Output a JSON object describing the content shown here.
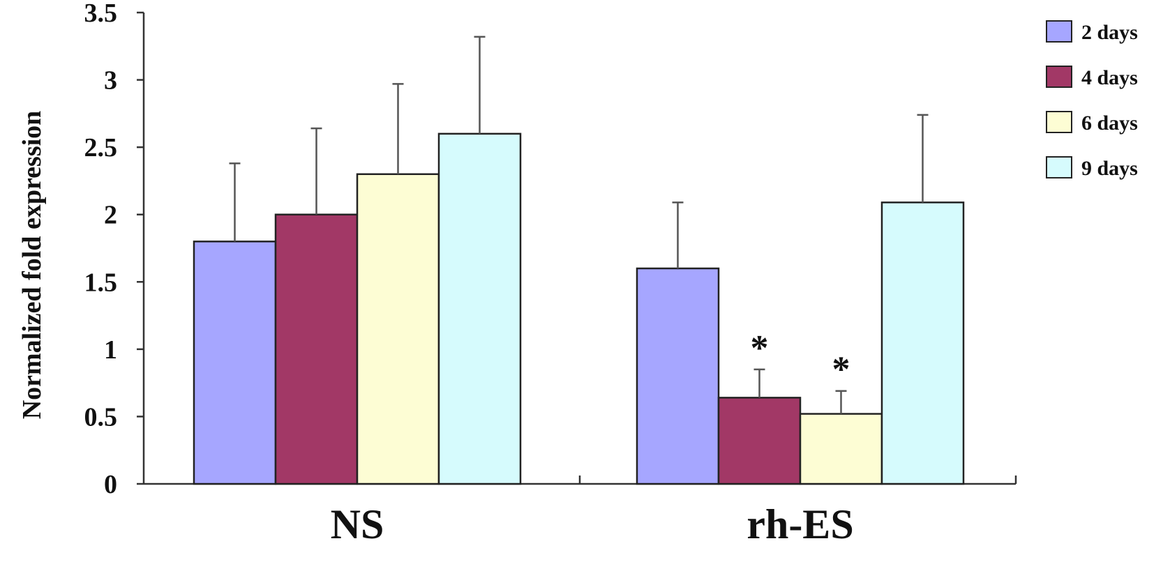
{
  "chart_data": {
    "type": "bar",
    "categories": [
      "NS",
      "rh-ES"
    ],
    "series": [
      {
        "name": "2 days",
        "color": "#a6a6ff",
        "values": [
          1.8,
          1.6
        ],
        "errors": [
          0.58,
          0.49
        ]
      },
      {
        "name": "4 days",
        "color": "#a23866",
        "values": [
          2.0,
          0.64
        ],
        "errors": [
          0.64,
          0.21
        ]
      },
      {
        "name": "6 days",
        "color": "#fdfdd4",
        "values": [
          2.3,
          0.52
        ],
        "errors": [
          0.67,
          0.17
        ]
      },
      {
        "name": "9 days",
        "color": "#d6fbfd",
        "values": [
          2.6,
          2.09
        ],
        "errors": [
          0.72,
          0.65
        ]
      }
    ],
    "significance": [
      {
        "series": "4 days",
        "category": "rh-ES",
        "label": "*"
      },
      {
        "series": "6 days",
        "category": "rh-ES",
        "label": "*"
      }
    ],
    "title": "",
    "xlabel": "",
    "ylabel": "Normalized fold expression",
    "ylim": [
      0,
      3.5
    ],
    "yticks": [
      "0",
      "0.5",
      "1",
      "1.5",
      "2",
      "2.5",
      "3",
      "3.5"
    ],
    "grid": false,
    "legend_position": "top-right"
  }
}
